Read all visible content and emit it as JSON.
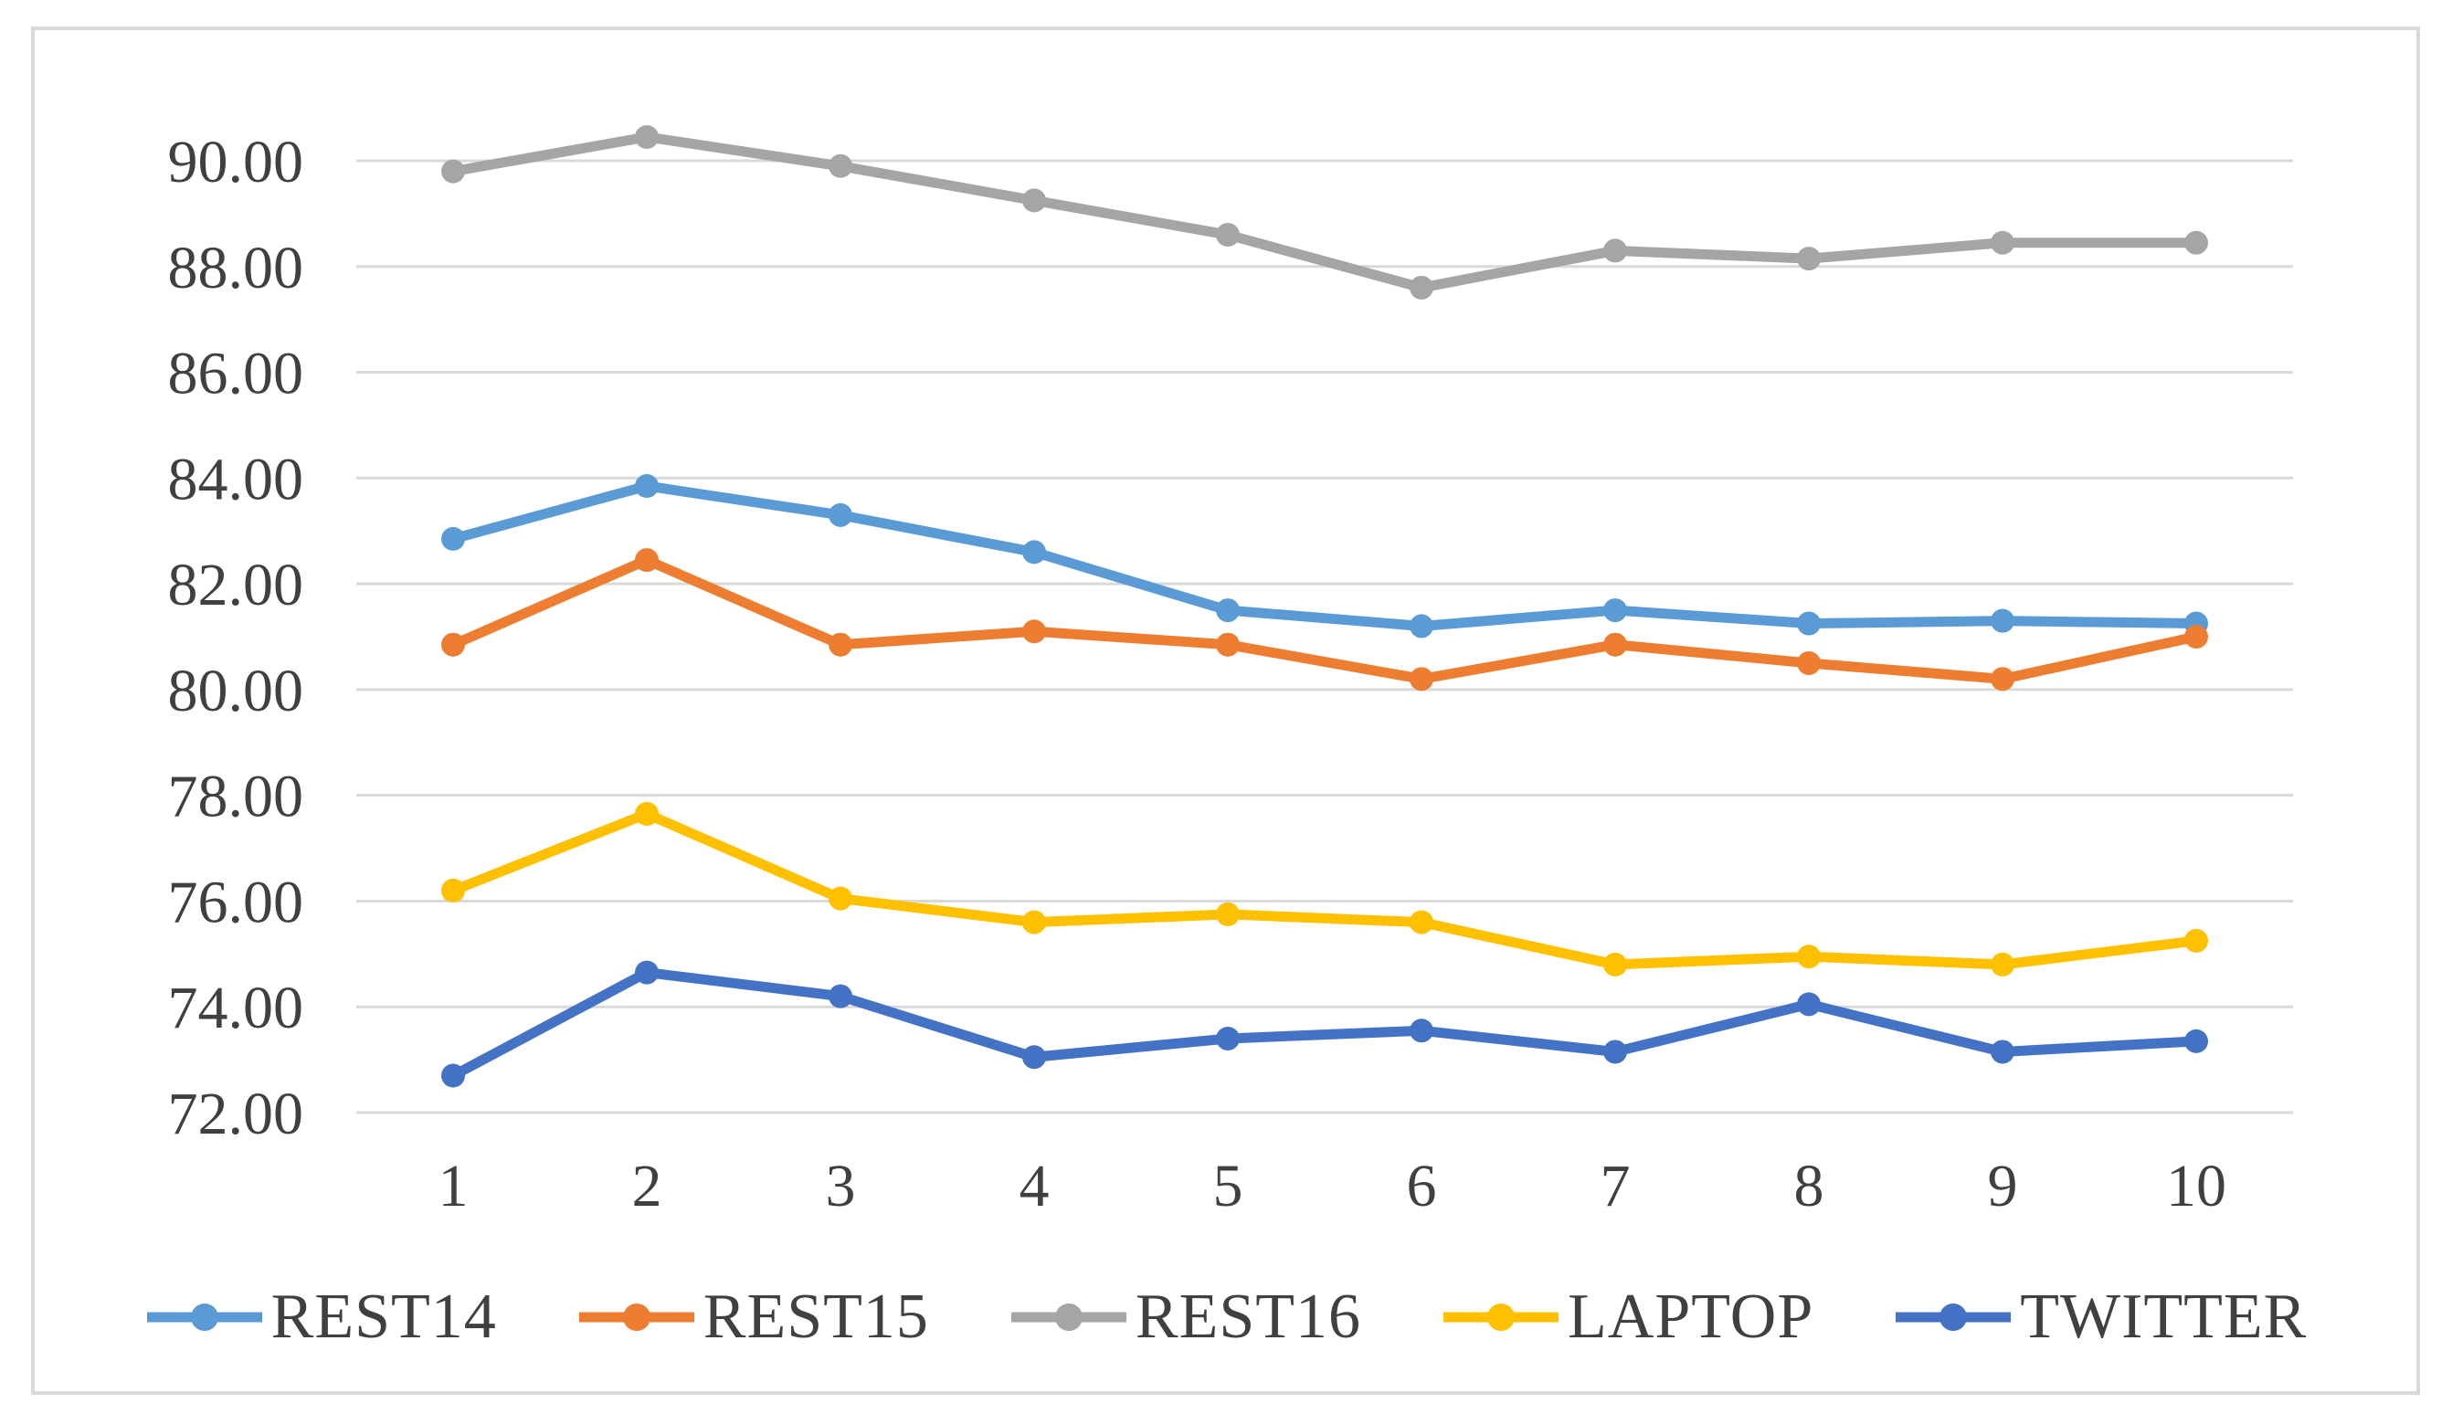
{
  "figure": {
    "background": "#ffffff",
    "border_color": "#d9d9d9",
    "gridline_color": "#d9d9d9",
    "text_color": "#404040"
  },
  "chart_data": {
    "type": "line",
    "title": "",
    "xlabel": "",
    "ylabel": "",
    "x_categories": [
      "1",
      "2",
      "3",
      "4",
      "5",
      "6",
      "7",
      "8",
      "9",
      "10"
    ],
    "y_ticks": [
      "90.00",
      "88.00",
      "86.00",
      "84.00",
      "82.00",
      "80.00",
      "78.00",
      "76.00",
      "74.00",
      "72.00"
    ],
    "y_tick_values": [
      90,
      88,
      86,
      84,
      82,
      80,
      78,
      76,
      74,
      72
    ],
    "ylim": [
      72,
      90
    ],
    "grid": true,
    "legend_position": "bottom",
    "series": [
      {
        "name": "REST14",
        "color": "#5B9BD5",
        "values": [
          82.85,
          83.85,
          83.3,
          82.6,
          81.5,
          81.2,
          81.5,
          81.25,
          81.3,
          81.25
        ]
      },
      {
        "name": "REST15",
        "color": "#ED7D31",
        "values": [
          80.85,
          82.45,
          80.85,
          81.1,
          80.85,
          80.2,
          80.85,
          80.5,
          80.2,
          81.0
        ]
      },
      {
        "name": "REST16",
        "color": "#A5A5A5",
        "values": [
          89.8,
          90.45,
          89.9,
          89.25,
          88.6,
          87.6,
          88.3,
          88.15,
          88.45,
          88.45
        ]
      },
      {
        "name": "LAPTOP",
        "color": "#FFC000",
        "values": [
          76.2,
          77.65,
          76.05,
          75.6,
          75.75,
          75.6,
          74.8,
          74.95,
          74.8,
          75.25
        ]
      },
      {
        "name": "TWITTER",
        "color": "#4472C4",
        "values": [
          72.7,
          74.65,
          74.2,
          73.05,
          73.4,
          73.55,
          73.15,
          74.05,
          73.15,
          73.35
        ]
      }
    ]
  }
}
